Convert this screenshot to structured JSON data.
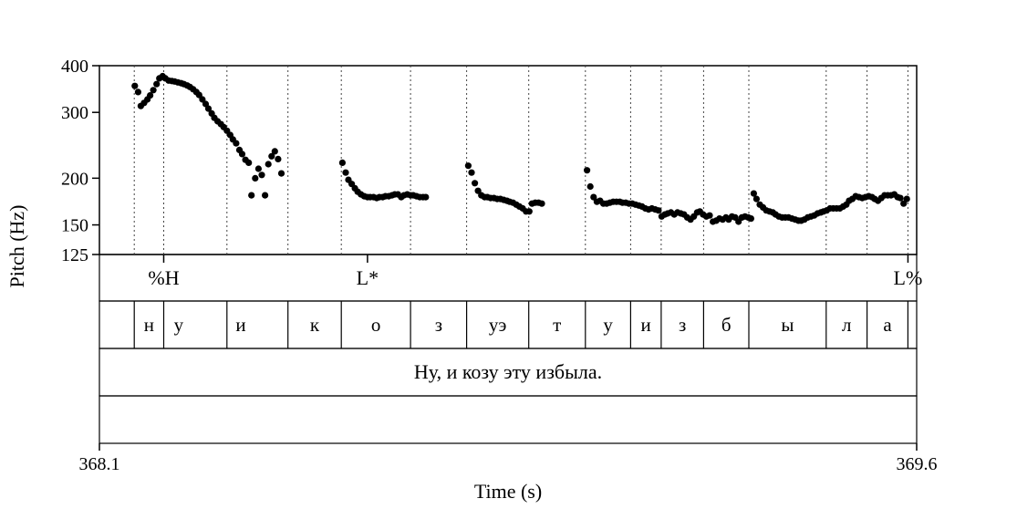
{
  "chart_data": {
    "type": "scatter",
    "xlabel": "Time (s)",
    "ylabel": "Pitch (Hz)",
    "xlim": [
      368.1,
      369.6
    ],
    "ylim": [
      125,
      400
    ],
    "y_scale": "log",
    "x_ticks": [
      "368.1",
      "369.6"
    ],
    "y_ticks": [
      {
        "value": 125,
        "label": "125"
      },
      {
        "value": 150,
        "label": "150"
      },
      {
        "value": 200,
        "label": "200"
      },
      {
        "value": 300,
        "label": "300"
      },
      {
        "value": 400,
        "label": "400"
      }
    ],
    "boundaries": [
      368.164,
      368.218,
      368.334,
      368.446,
      368.544,
      368.671,
      368.774,
      368.888,
      368.992,
      369.075,
      369.131,
      369.209,
      369.292,
      369.434,
      369.509,
      369.584
    ],
    "tone_tier": [
      {
        "label": "%H",
        "time": 368.218
      },
      {
        "label": "L*",
        "time": 368.592
      },
      {
        "label": "L%",
        "time": 369.584
      }
    ],
    "segments": [
      {
        "label": "н",
        "start": 368.164,
        "end": 368.218
      },
      {
        "label": "у",
        "start": 368.218,
        "end": 368.273
      },
      {
        "label": "и",
        "start": 368.273,
        "end": 368.446
      },
      {
        "label": "к",
        "start": 368.446,
        "end": 368.544
      },
      {
        "label": "о",
        "start": 368.544,
        "end": 368.671
      },
      {
        "label": "з",
        "start": 368.671,
        "end": 368.774
      },
      {
        "label": "уэ",
        "start": 368.774,
        "end": 368.888
      },
      {
        "label": "т",
        "start": 368.888,
        "end": 368.992
      },
      {
        "label": "у",
        "start": 368.992,
        "end": 369.075
      },
      {
        "label": "и",
        "start": 369.075,
        "end": 369.131
      },
      {
        "label": "з",
        "start": 369.131,
        "end": 369.209
      },
      {
        "label": "б",
        "start": 369.209,
        "end": 369.292
      },
      {
        "label": "ы",
        "start": 369.292,
        "end": 369.434
      },
      {
        "label": "л",
        "start": 369.434,
        "end": 369.509
      },
      {
        "label": "а",
        "start": 369.509,
        "end": 369.584
      }
    ],
    "sentence": "Ну, и козу эту избыла.",
    "points": [
      [
        368.165,
        353
      ],
      [
        368.171,
        340
      ],
      [
        368.176,
        312
      ],
      [
        368.182,
        318
      ],
      [
        368.188,
        325
      ],
      [
        368.193,
        333
      ],
      [
        368.199,
        344
      ],
      [
        368.205,
        357
      ],
      [
        368.21,
        370
      ],
      [
        368.216,
        375
      ],
      [
        368.221,
        370
      ],
      [
        368.227,
        365
      ],
      [
        368.233,
        364
      ],
      [
        368.238,
        363
      ],
      [
        368.244,
        361
      ],
      [
        368.25,
        359
      ],
      [
        368.255,
        357
      ],
      [
        368.261,
        354
      ],
      [
        368.266,
        351
      ],
      [
        368.272,
        346
      ],
      [
        368.278,
        340
      ],
      [
        368.283,
        334
      ],
      [
        368.289,
        325
      ],
      [
        368.295,
        316
      ],
      [
        368.3,
        307
      ],
      [
        368.306,
        298
      ],
      [
        368.311,
        290
      ],
      [
        368.317,
        284
      ],
      [
        368.323,
        279
      ],
      [
        368.328,
        274
      ],
      [
        368.334,
        268
      ],
      [
        368.34,
        261
      ],
      [
        368.345,
        254
      ],
      [
        368.351,
        248
      ],
      [
        368.357,
        238
      ],
      [
        368.362,
        232
      ],
      [
        368.368,
        224
      ],
      [
        368.374,
        220
      ],
      [
        368.379,
        180
      ],
      [
        368.386,
        200
      ],
      [
        368.392,
        212
      ],
      [
        368.398,
        204
      ],
      [
        368.404,
        180
      ],
      [
        368.41,
        218
      ],
      [
        368.416,
        229
      ],
      [
        368.422,
        236
      ],
      [
        368.428,
        225
      ],
      [
        368.434,
        206
      ],
      [
        368.546,
        220
      ],
      [
        368.552,
        207
      ],
      [
        368.557,
        198
      ],
      [
        368.563,
        193
      ],
      [
        368.569,
        188
      ],
      [
        368.574,
        184
      ],
      [
        368.58,
        181
      ],
      [
        368.586,
        179
      ],
      [
        368.592,
        178
      ],
      [
        368.597,
        178
      ],
      [
        368.603,
        178
      ],
      [
        368.609,
        177
      ],
      [
        368.614,
        178
      ],
      [
        368.62,
        178
      ],
      [
        368.625,
        179
      ],
      [
        368.631,
        179
      ],
      [
        368.637,
        180
      ],
      [
        368.642,
        181
      ],
      [
        368.648,
        181
      ],
      [
        368.654,
        178
      ],
      [
        368.659,
        180
      ],
      [
        368.665,
        181
      ],
      [
        368.671,
        180
      ],
      [
        368.676,
        180
      ],
      [
        368.682,
        179
      ],
      [
        368.688,
        178
      ],
      [
        368.694,
        178
      ],
      [
        368.699,
        178
      ],
      [
        368.777,
        216
      ],
      [
        368.783,
        207
      ],
      [
        368.789,
        194
      ],
      [
        368.795,
        185
      ],
      [
        368.801,
        180
      ],
      [
        368.807,
        178
      ],
      [
        368.812,
        178
      ],
      [
        368.818,
        177
      ],
      [
        368.824,
        177
      ],
      [
        368.83,
        176
      ],
      [
        368.836,
        176
      ],
      [
        368.842,
        175
      ],
      [
        368.848,
        174
      ],
      [
        368.853,
        173
      ],
      [
        368.859,
        172
      ],
      [
        368.865,
        170
      ],
      [
        368.871,
        168
      ],
      [
        368.877,
        166
      ],
      [
        368.883,
        163
      ],
      [
        368.889,
        163
      ],
      [
        368.894,
        171
      ],
      [
        368.9,
        172
      ],
      [
        368.906,
        172
      ],
      [
        368.912,
        171
      ],
      [
        368.995,
        210
      ],
      [
        369.001,
        190
      ],
      [
        369.007,
        178
      ],
      [
        369.013,
        173
      ],
      [
        369.019,
        174
      ],
      [
        369.025,
        171
      ],
      [
        369.031,
        171
      ],
      [
        369.037,
        172
      ],
      [
        369.043,
        173
      ],
      [
        369.049,
        173
      ],
      [
        369.055,
        173
      ],
      [
        369.06,
        172
      ],
      [
        369.066,
        172
      ],
      [
        369.072,
        171
      ],
      [
        369.078,
        171
      ],
      [
        369.084,
        170
      ],
      [
        369.09,
        169
      ],
      [
        369.096,
        168
      ],
      [
        369.102,
        166
      ],
      [
        369.108,
        165
      ],
      [
        369.114,
        166
      ],
      [
        369.12,
        165
      ],
      [
        369.126,
        164
      ],
      [
        369.132,
        158
      ],
      [
        369.138,
        160
      ],
      [
        369.143,
        161
      ],
      [
        369.149,
        162
      ],
      [
        369.155,
        160
      ],
      [
        369.161,
        162
      ],
      [
        369.167,
        161
      ],
      [
        369.173,
        160
      ],
      [
        369.179,
        157
      ],
      [
        369.185,
        155
      ],
      [
        369.191,
        158
      ],
      [
        369.197,
        162
      ],
      [
        369.202,
        163
      ],
      [
        369.208,
        160
      ],
      [
        369.214,
        158
      ],
      [
        369.22,
        159
      ],
      [
        369.226,
        153
      ],
      [
        369.232,
        154
      ],
      [
        369.238,
        156
      ],
      [
        369.244,
        155
      ],
      [
        369.25,
        157
      ],
      [
        369.255,
        155
      ],
      [
        369.261,
        158
      ],
      [
        369.267,
        157
      ],
      [
        369.273,
        153
      ],
      [
        369.279,
        157
      ],
      [
        369.285,
        158
      ],
      [
        369.291,
        157
      ],
      [
        369.296,
        156
      ],
      [
        369.301,
        182
      ],
      [
        369.306,
        176
      ],
      [
        369.312,
        170
      ],
      [
        369.318,
        167
      ],
      [
        369.324,
        164
      ],
      [
        369.33,
        163
      ],
      [
        369.336,
        162
      ],
      [
        369.341,
        160
      ],
      [
        369.347,
        158
      ],
      [
        369.353,
        157
      ],
      [
        369.359,
        157
      ],
      [
        369.365,
        157
      ],
      [
        369.371,
        156
      ],
      [
        369.377,
        155
      ],
      [
        369.383,
        154
      ],
      [
        369.388,
        154
      ],
      [
        369.394,
        155
      ],
      [
        369.4,
        157
      ],
      [
        369.406,
        158
      ],
      [
        369.412,
        159
      ],
      [
        369.418,
        161
      ],
      [
        369.424,
        162
      ],
      [
        369.429,
        163
      ],
      [
        369.435,
        164
      ],
      [
        369.441,
        166
      ],
      [
        369.447,
        166
      ],
      [
        369.453,
        166
      ],
      [
        369.459,
        166
      ],
      [
        369.465,
        168
      ],
      [
        369.471,
        170
      ],
      [
        369.476,
        174
      ],
      [
        369.482,
        176
      ],
      [
        369.488,
        179
      ],
      [
        369.494,
        178
      ],
      [
        369.5,
        177
      ],
      [
        369.506,
        178
      ],
      [
        369.512,
        179
      ],
      [
        369.518,
        178
      ],
      [
        369.523,
        176
      ],
      [
        369.529,
        174
      ],
      [
        369.535,
        177
      ],
      [
        369.541,
        180
      ],
      [
        369.547,
        180
      ],
      [
        369.553,
        180
      ],
      [
        369.559,
        181
      ],
      [
        369.565,
        178
      ],
      [
        369.57,
        177
      ],
      [
        369.576,
        171
      ],
      [
        369.582,
        176
      ]
    ]
  }
}
